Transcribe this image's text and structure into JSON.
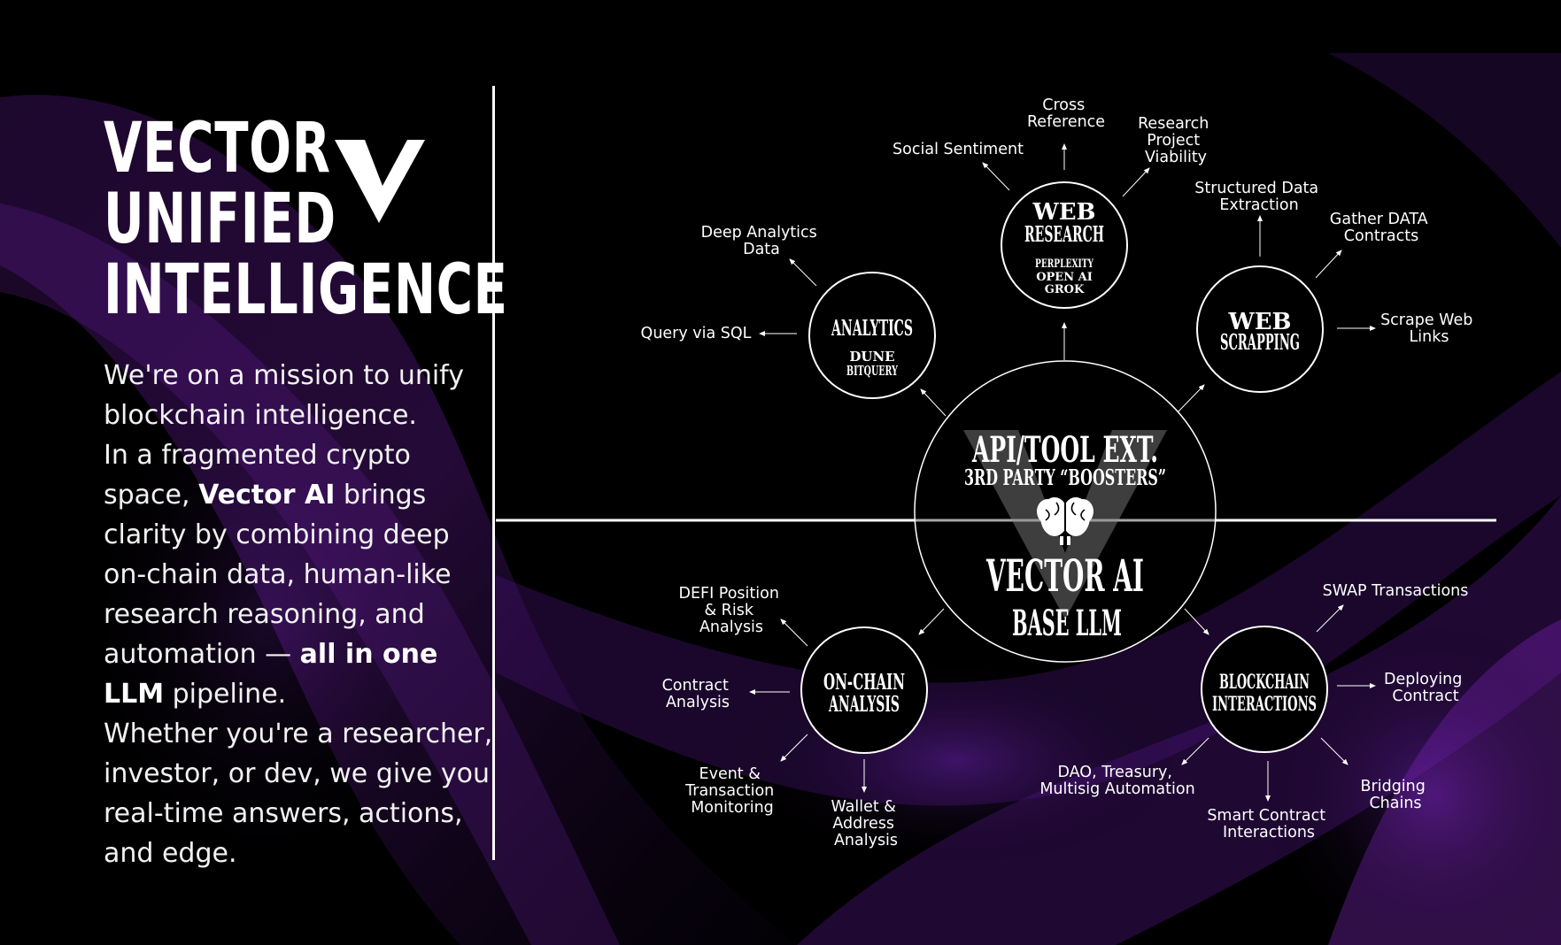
{
  "title": {
    "line1": "VECTOR",
    "line2": "UNIFIED",
    "line3": "INTELLIGENCE"
  },
  "mission": {
    "p1": "We're on a mission to unify blockchain intelligence.",
    "p2_pre": "In a fragmented crypto space, ",
    "p2_bold": "Vector AI",
    "p2_mid": " brings clarity by combining deep on-chain data, human-like research reasoning, and automation — ",
    "p2_bold2": "all in one LLM",
    "p2_post": " pipeline.",
    "p3": "Whether you're a researcher, investor, or dev, we give you real-time answers, actions, and edge."
  },
  "center": {
    "top_title": "API/TOOL EXT.",
    "top_sub": "3RD PARTY “BOOSTERS”",
    "bottom_title": "VECTOR AI",
    "bottom_sub": "BASE LLM",
    "icon": "brain-icon"
  },
  "nodes": {
    "web_research": {
      "title1": "WEB",
      "title2": "RESEARCH",
      "sub1": "PERPLEXITY",
      "sub2": "OPEN AI",
      "sub3": "GROK"
    },
    "analytics": {
      "title": "ANALYTICS",
      "sub1": "DUNE",
      "sub2": "BITQUERY"
    },
    "web_scrapping": {
      "title1": "WEB",
      "title2": "SCRAPPING"
    },
    "on_chain": {
      "title1": "ON-CHAIN",
      "title2": "ANALYSIS"
    },
    "blockchain": {
      "title1": "BLOCKCHAIN",
      "title2": "INTERACTIONS"
    }
  },
  "labels": {
    "cross_reference": [
      "Cross",
      "Reference"
    ],
    "social_sentiment": [
      "Social Sentiment"
    ],
    "research_project": [
      "Research",
      "Project",
      "Viability"
    ],
    "structured_data": [
      "Structured Data",
      "Extraction"
    ],
    "gather_data": [
      "Gather DATA",
      "Contracts"
    ],
    "scrape_web": [
      "Scrape Web",
      "Links"
    ],
    "deep_analytics": [
      "Deep Analytics",
      "Data"
    ],
    "query_sql": [
      "Query via SQL"
    ],
    "defi_position": [
      "DEFI Position",
      "& Risk",
      "Analysis"
    ],
    "contract_analysis": [
      "Contract",
      "Analysis"
    ],
    "event_tx": [
      "Event &",
      "Transaction",
      "Monitoring"
    ],
    "wallet_address": [
      "Wallet &",
      "Address",
      "Analysis"
    ],
    "swap_tx": [
      "SWAP Transactions"
    ],
    "deploying": [
      "Deploying",
      "Contract"
    ],
    "dao_treasury": [
      "DAO, Treasury,",
      "Multisig Automation"
    ],
    "smart_contract": [
      "Smart Contract",
      "Interactions"
    ],
    "bridging": [
      "Bridging",
      "Chains"
    ]
  },
  "colors": {
    "background": "#000000",
    "text": "#ffffff",
    "glow": "#7a1fb0",
    "glow2": "#3a1160"
  }
}
